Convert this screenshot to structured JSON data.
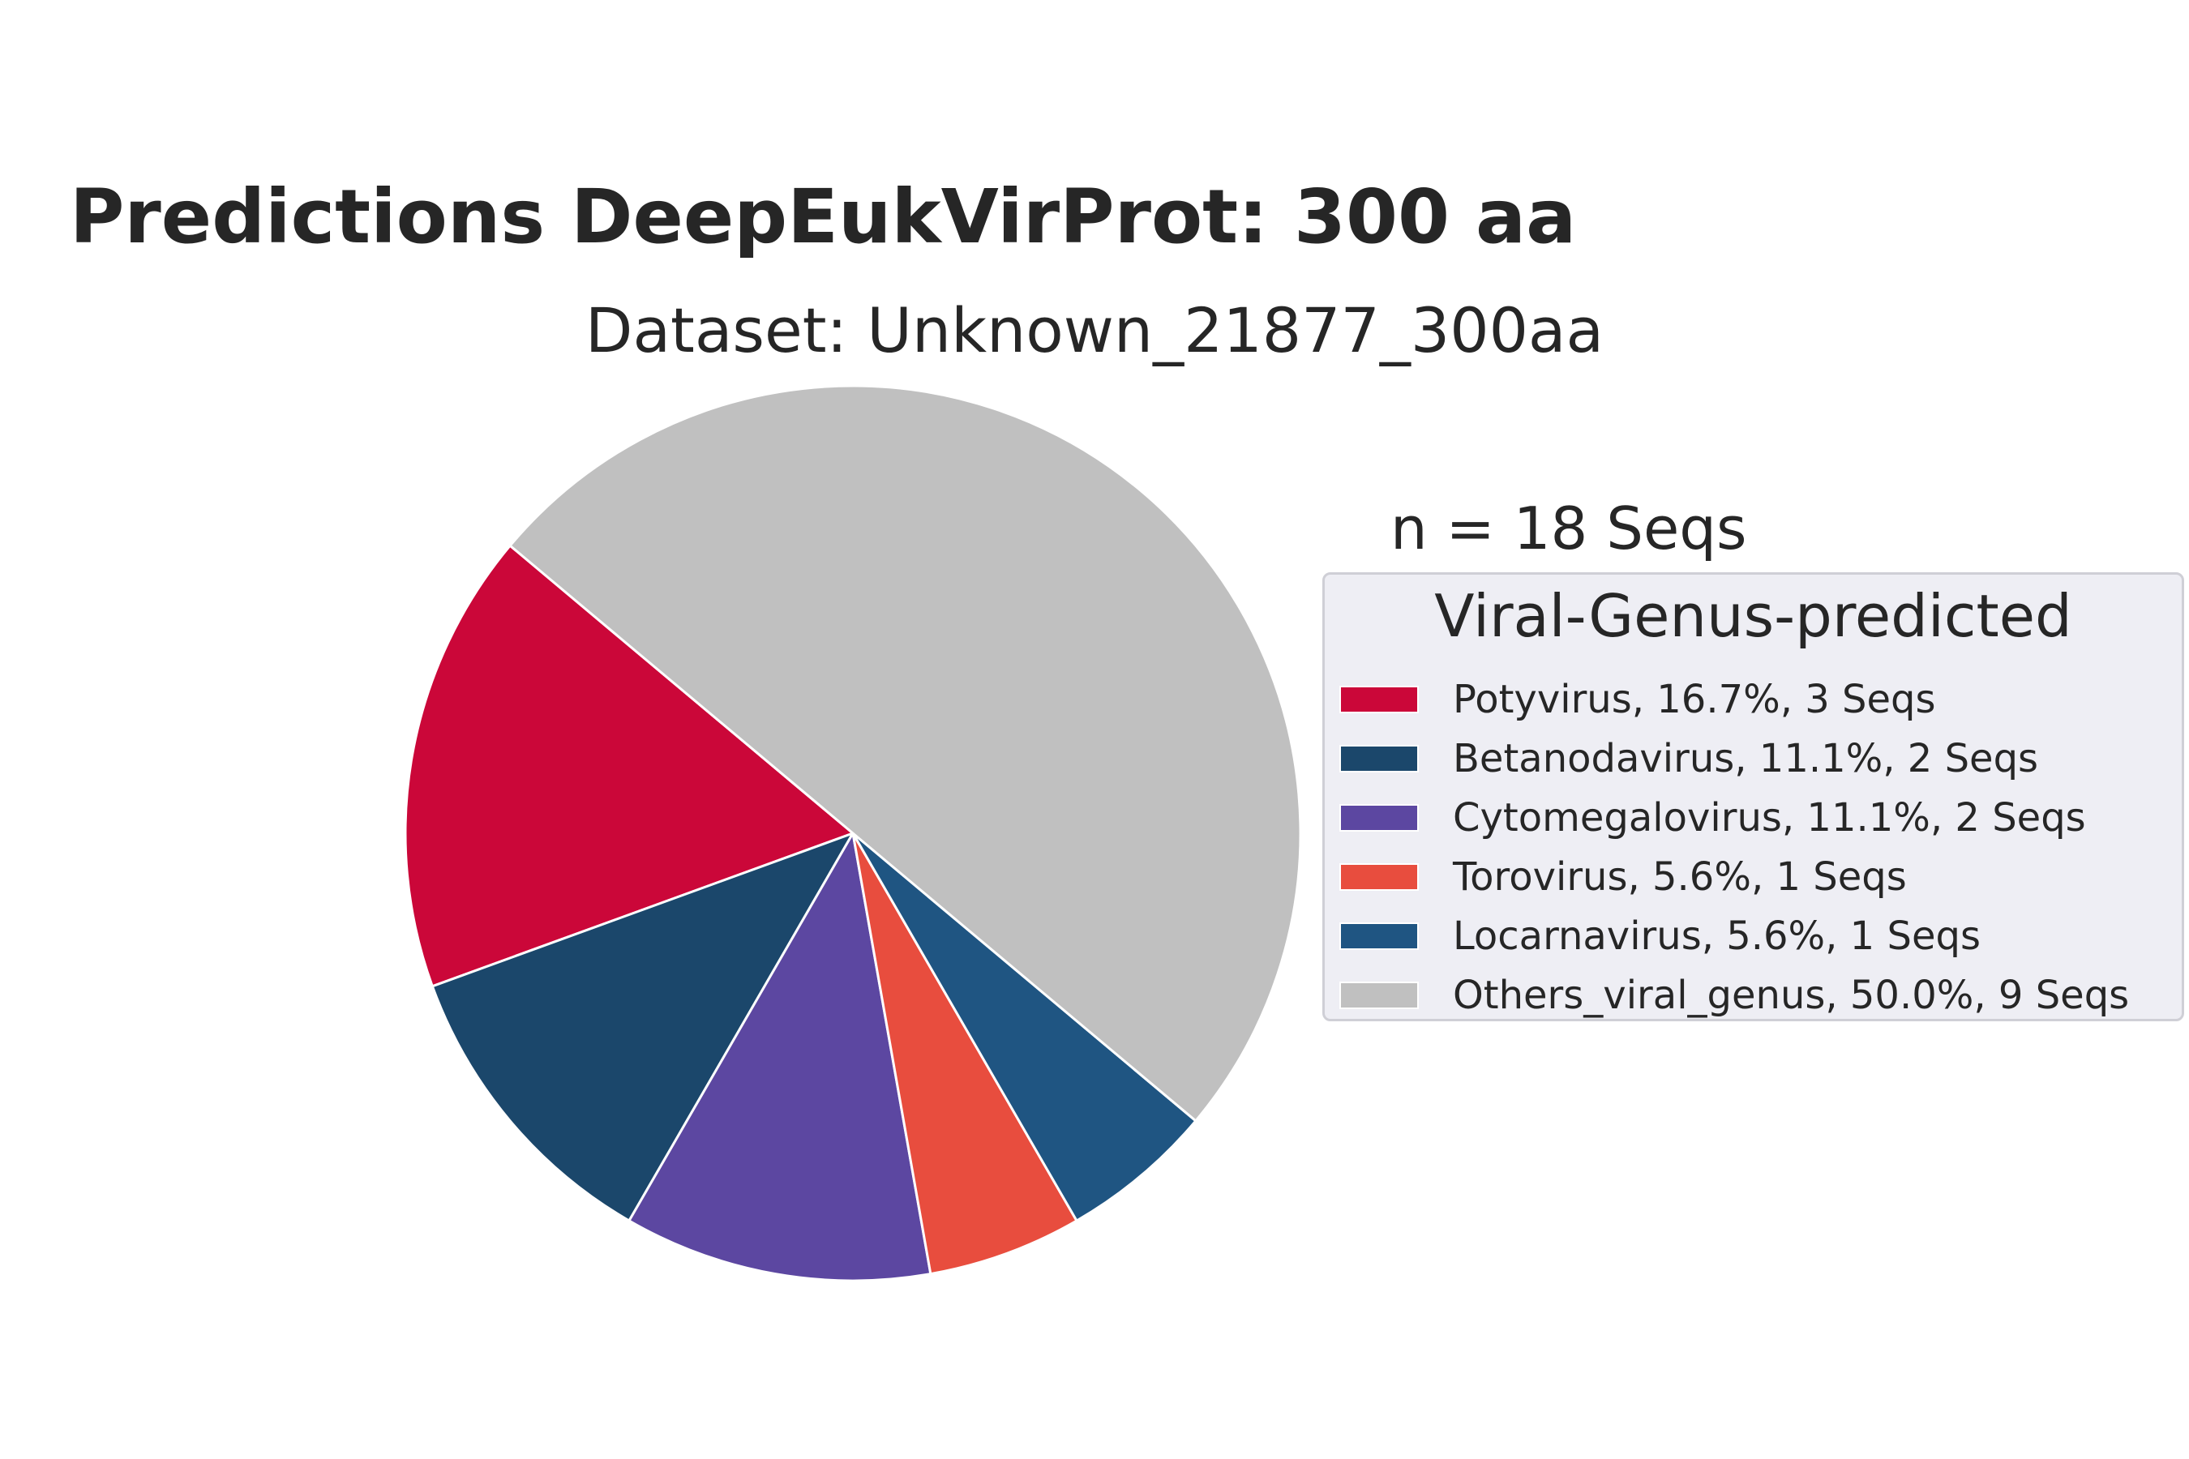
{
  "chart_data": {
    "type": "pie",
    "title": "Predictions DeepEukVirProt: 300 aa",
    "subtitle": "Dataset: Unknown_21877_300aa",
    "annotation": "n = 18 Seqs",
    "legend_title": "Viral-Genus-predicted",
    "legend_position": "right",
    "start_angle_deg": 140,
    "direction": "counterclockwise",
    "slices": [
      {
        "label": "Potyvirus, 16.7%, 3 Seqs",
        "value": 3,
        "color": "#cb0739"
      },
      {
        "label": "Betanodavirus, 11.1%, 2 Seqs",
        "value": 2,
        "color": "#1b476b"
      },
      {
        "label": "Cytomegalovirus, 11.1%, 2 Seqs",
        "value": 2,
        "color": "#5c47a1"
      },
      {
        "label": "Torovirus, 5.6%, 1 Seqs",
        "value": 1,
        "color": "#e84d3e"
      },
      {
        "label": "Locarnavirus, 5.6%, 1 Seqs",
        "value": 1,
        "color": "#1f5582"
      },
      {
        "label": "Others_viral_genus, 50.0%, 9 Seqs",
        "value": 9,
        "color": "#c0c0c0"
      }
    ]
  }
}
